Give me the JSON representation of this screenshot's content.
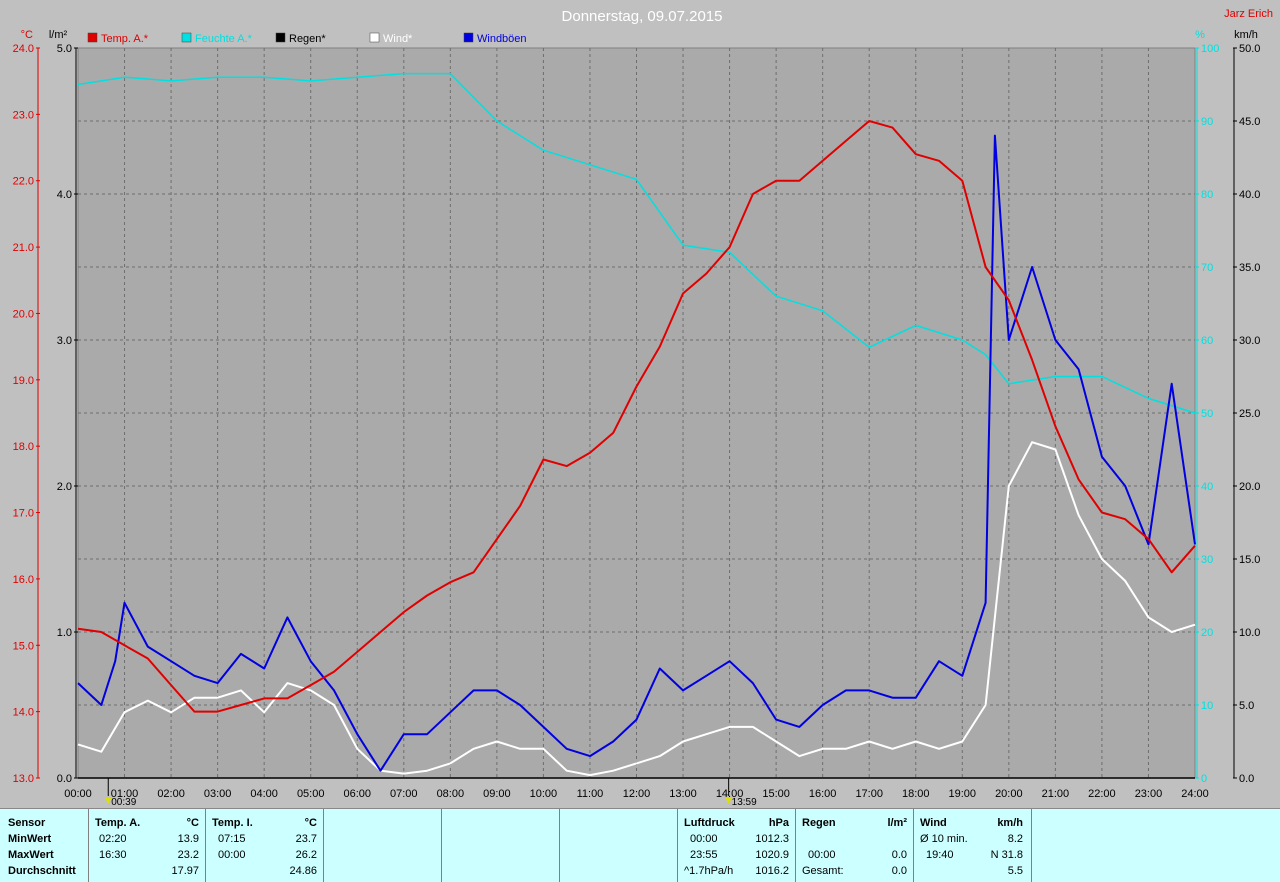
{
  "header": {
    "title": "Donnerstag, 09.07.2015",
    "station": "Jarz Erich"
  },
  "legend": [
    {
      "label": "Temp. A.*",
      "color": "#e00000"
    },
    {
      "label": "Feuchte A.*",
      "color": "#00e0e0"
    },
    {
      "label": "Regen*",
      "color": "#000000"
    },
    {
      "label": "Wind*",
      "color": "#ffffff"
    },
    {
      "label": "Windböen",
      "color": "#0000e0"
    }
  ],
  "axes": {
    "temp_unit": "°C",
    "rain_unit": "l/m²",
    "hum_unit": "%",
    "wind_unit": "km/h",
    "temp_ticks": [
      "13.0",
      "14.0",
      "15.0",
      "16.0",
      "17.0",
      "18.0",
      "19.0",
      "20.0",
      "21.0",
      "22.0",
      "23.0",
      "24.0"
    ],
    "rain_ticks": [
      "0.0",
      "1.0",
      "2.0",
      "3.0",
      "4.0",
      "5.0"
    ],
    "hum_ticks": [
      "0",
      "10",
      "20",
      "30",
      "40",
      "50",
      "60",
      "70",
      "80",
      "90",
      "100"
    ],
    "wind_ticks": [
      "0.0",
      "5.0",
      "10.0",
      "15.0",
      "20.0",
      "25.0",
      "30.0",
      "35.0",
      "40.0",
      "45.0",
      "50.0"
    ],
    "x_ticks": [
      "00:00",
      "01:00",
      "02:00",
      "03:00",
      "04:00",
      "05:00",
      "06:00",
      "07:00",
      "08:00",
      "09:00",
      "10:00",
      "11:00",
      "12:00",
      "13:00",
      "14:00",
      "15:00",
      "16:00",
      "17:00",
      "18:00",
      "19:00",
      "20:00",
      "21:00",
      "22:00",
      "23:00",
      "24:00"
    ]
  },
  "markers": [
    {
      "label": "00:39",
      "hour": 0.65
    },
    {
      "label": "13:59",
      "hour": 13.98
    }
  ],
  "chart_data": {
    "type": "line",
    "x_unit": "hour",
    "xlim": [
      0,
      24
    ],
    "grid": true,
    "legend_position": "top-left",
    "series": [
      {
        "name": "Temp. A.*",
        "unit": "°C",
        "axis": "left",
        "ylim": [
          13,
          24
        ],
        "color": "#e00000",
        "points": [
          [
            0,
            15.25
          ],
          [
            0.5,
            15.2
          ],
          [
            1,
            15.0
          ],
          [
            1.5,
            14.8
          ],
          [
            2,
            14.4
          ],
          [
            2.5,
            14.0
          ],
          [
            3,
            14.0
          ],
          [
            3.5,
            14.1
          ],
          [
            4,
            14.2
          ],
          [
            4.5,
            14.2
          ],
          [
            5,
            14.4
          ],
          [
            5.5,
            14.6
          ],
          [
            6,
            14.9
          ],
          [
            6.5,
            15.2
          ],
          [
            7,
            15.5
          ],
          [
            7.5,
            15.75
          ],
          [
            8,
            15.95
          ],
          [
            8.5,
            16.1
          ],
          [
            9,
            16.6
          ],
          [
            9.5,
            17.1
          ],
          [
            10,
            17.8
          ],
          [
            10.5,
            17.7
          ],
          [
            11,
            17.9
          ],
          [
            11.5,
            18.2
          ],
          [
            12,
            18.9
          ],
          [
            12.5,
            19.5
          ],
          [
            13,
            20.3
          ],
          [
            13.5,
            20.6
          ],
          [
            14,
            21.0
          ],
          [
            14.5,
            21.8
          ],
          [
            15,
            22.0
          ],
          [
            15.5,
            22.0
          ],
          [
            16,
            22.3
          ],
          [
            16.5,
            22.6
          ],
          [
            17,
            22.9
          ],
          [
            17.5,
            22.8
          ],
          [
            18,
            22.4
          ],
          [
            18.5,
            22.3
          ],
          [
            19,
            22.0
          ],
          [
            19.5,
            20.7
          ],
          [
            20,
            20.2
          ],
          [
            20.5,
            19.3
          ],
          [
            21,
            18.3
          ],
          [
            21.5,
            17.5
          ],
          [
            22,
            17.0
          ],
          [
            22.5,
            16.9
          ],
          [
            23,
            16.6
          ],
          [
            23.5,
            16.1
          ],
          [
            24,
            16.5
          ]
        ]
      },
      {
        "name": "Feuchte A.*",
        "unit": "%",
        "axis": "right-inner",
        "ylim": [
          0,
          100
        ],
        "color": "#00e0e0",
        "points": [
          [
            0,
            95
          ],
          [
            1,
            96
          ],
          [
            2,
            95.5
          ],
          [
            3,
            96
          ],
          [
            4,
            96
          ],
          [
            5,
            95.5
          ],
          [
            6,
            96
          ],
          [
            7,
            96.5
          ],
          [
            8,
            96.5
          ],
          [
            9,
            90
          ],
          [
            10,
            86
          ],
          [
            11,
            84
          ],
          [
            12,
            82
          ],
          [
            13,
            73
          ],
          [
            14,
            72
          ],
          [
            15,
            66
          ],
          [
            16,
            64
          ],
          [
            17,
            59
          ],
          [
            18,
            62
          ],
          [
            19,
            60
          ],
          [
            19.5,
            58
          ],
          [
            20,
            54
          ],
          [
            21,
            55
          ],
          [
            22,
            55
          ],
          [
            23,
            52
          ],
          [
            24,
            50
          ]
        ]
      },
      {
        "name": "Regen*",
        "unit": "l/m²",
        "axis": "left-inner",
        "ylim": [
          0,
          5
        ],
        "color": "#000000",
        "points": [
          [
            0,
            0
          ],
          [
            24,
            0
          ]
        ]
      },
      {
        "name": "Wind*",
        "unit": "km/h",
        "axis": "right",
        "ylim": [
          0,
          50
        ],
        "color": "#ffffff",
        "points": [
          [
            0,
            2.3
          ],
          [
            0.5,
            1.8
          ],
          [
            1,
            4.5
          ],
          [
            1.5,
            5.3
          ],
          [
            2,
            4.5
          ],
          [
            2.5,
            5.5
          ],
          [
            3,
            5.5
          ],
          [
            3.5,
            6.0
          ],
          [
            4,
            4.5
          ],
          [
            4.5,
            6.5
          ],
          [
            5,
            6.0
          ],
          [
            5.5,
            5.0
          ],
          [
            6,
            2.0
          ],
          [
            6.5,
            0.5
          ],
          [
            7,
            0.3
          ],
          [
            7.5,
            0.5
          ],
          [
            8,
            1.0
          ],
          [
            8.5,
            2.0
          ],
          [
            9,
            2.5
          ],
          [
            9.5,
            2.0
          ],
          [
            10,
            2.0
          ],
          [
            10.5,
            0.5
          ],
          [
            11,
            0.2
          ],
          [
            11.5,
            0.5
          ],
          [
            12,
            1.0
          ],
          [
            12.5,
            1.5
          ],
          [
            13,
            2.5
          ],
          [
            13.5,
            3.0
          ],
          [
            14,
            3.5
          ],
          [
            14.5,
            3.5
          ],
          [
            15,
            2.5
          ],
          [
            15.5,
            1.5
          ],
          [
            16,
            2.0
          ],
          [
            16.5,
            2.0
          ],
          [
            17,
            2.5
          ],
          [
            17.5,
            2.0
          ],
          [
            18,
            2.5
          ],
          [
            18.5,
            2.0
          ],
          [
            19,
            2.5
          ],
          [
            19.5,
            5.0
          ],
          [
            20,
            20.0
          ],
          [
            20.5,
            23.0
          ],
          [
            21,
            22.5
          ],
          [
            21.5,
            18.0
          ],
          [
            22,
            15.0
          ],
          [
            22.5,
            13.5
          ],
          [
            23,
            11.0
          ],
          [
            23.5,
            10.0
          ],
          [
            24,
            10.5
          ]
        ]
      },
      {
        "name": "Windböen",
        "unit": "km/h",
        "axis": "right",
        "ylim": [
          0,
          50
        ],
        "color": "#0000e0",
        "points": [
          [
            0,
            6.5
          ],
          [
            0.5,
            5.0
          ],
          [
            0.8,
            8.0
          ],
          [
            1,
            12.0
          ],
          [
            1.5,
            9.0
          ],
          [
            2,
            8.0
          ],
          [
            2.5,
            7.0
          ],
          [
            3,
            6.5
          ],
          [
            3.5,
            8.5
          ],
          [
            4,
            7.5
          ],
          [
            4.5,
            11.0
          ],
          [
            5,
            8.0
          ],
          [
            5.5,
            6.0
          ],
          [
            6,
            3.0
          ],
          [
            6.5,
            0.5
          ],
          [
            7,
            3.0
          ],
          [
            7.5,
            3.0
          ],
          [
            8,
            4.5
          ],
          [
            8.5,
            6.0
          ],
          [
            9,
            6.0
          ],
          [
            9.5,
            5.0
          ],
          [
            10,
            3.5
          ],
          [
            10.5,
            2.0
          ],
          [
            11,
            1.5
          ],
          [
            11.5,
            2.5
          ],
          [
            12,
            4.0
          ],
          [
            12.5,
            7.5
          ],
          [
            13,
            6.0
          ],
          [
            13.5,
            7.0
          ],
          [
            14,
            8.0
          ],
          [
            14.5,
            6.5
          ],
          [
            15,
            4.0
          ],
          [
            15.5,
            3.5
          ],
          [
            16,
            5.0
          ],
          [
            16.5,
            6.0
          ],
          [
            17,
            6.0
          ],
          [
            17.5,
            5.5
          ],
          [
            18,
            5.5
          ],
          [
            18.5,
            8.0
          ],
          [
            19,
            7.0
          ],
          [
            19.5,
            12.0
          ],
          [
            19.7,
            44.0
          ],
          [
            20,
            30.0
          ],
          [
            20.5,
            35.0
          ],
          [
            21,
            30.0
          ],
          [
            21.5,
            28.0
          ],
          [
            22,
            22.0
          ],
          [
            22.5,
            20.0
          ],
          [
            23,
            16.0
          ],
          [
            23.5,
            27.0
          ],
          [
            24,
            16.0
          ]
        ]
      }
    ]
  },
  "stats": {
    "sensor": {
      "header": "Sensor",
      "rows": [
        "MinWert",
        "MaxWert",
        "Durchschnitt"
      ]
    },
    "temp_a": {
      "header": "Temp. A.",
      "unit": "°C",
      "min_time": "02:20",
      "min": "13.9",
      "max_time": "16:30",
      "max": "23.2",
      "avg": "17.97"
    },
    "temp_i": {
      "header": "Temp. I.",
      "unit": "°C",
      "min_time": "07:15",
      "min": "23.7",
      "max_time": "00:00",
      "max": "26.2",
      "avg": "24.86"
    },
    "pressure": {
      "header": "Luftdruck",
      "unit": "hPa",
      "min_time": "00:00",
      "min": "1012.3",
      "max_time": "23:55",
      "max": "1020.9",
      "trend": "^1.7hPa/h",
      "avg": "1016.2"
    },
    "rain": {
      "header": "Regen",
      "unit": "l/m²",
      "max_time": "00:00",
      "max": "0.0",
      "total_label": "Gesamt:",
      "total": "0.0"
    },
    "wind": {
      "header": "Wind",
      "unit": "km/h",
      "avg10_label": "Ø 10 min.",
      "avg10": "8.2",
      "max_time": "19:40",
      "max": "N 31.8",
      "avg": "5.5"
    }
  }
}
